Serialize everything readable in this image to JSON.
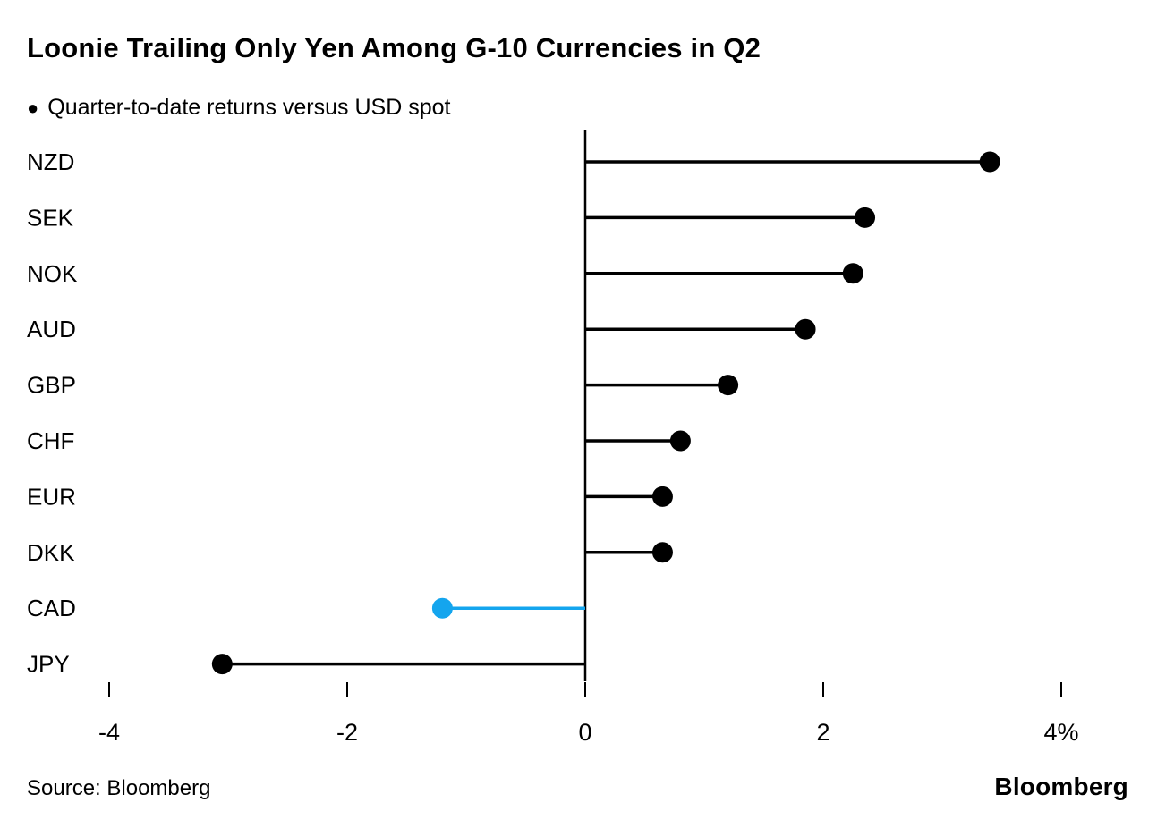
{
  "title": "Loonie Trailing Only Yen Among G-10 Currencies in Q2",
  "legend": {
    "marker": "●",
    "label": "Quarter-to-date returns versus USD spot"
  },
  "footer": {
    "source": "Source: Bloomberg",
    "brand": "Bloomberg"
  },
  "colors": {
    "default_series": "#000000",
    "highlight_series": "#14a5ee",
    "axis": "#000000",
    "background": "#ffffff"
  },
  "chart_data": {
    "type": "bar",
    "subtype": "horizontal-lollipop",
    "title": "Loonie Trailing Only Yen Among G-10 Currencies in Q2",
    "series_name": "Quarter-to-date returns versus USD spot",
    "categories": [
      "NZD",
      "SEK",
      "NOK",
      "AUD",
      "GBP",
      "CHF",
      "EUR",
      "DKK",
      "CAD",
      "JPY"
    ],
    "values": [
      3.4,
      2.35,
      2.25,
      1.85,
      1.2,
      0.8,
      0.65,
      0.65,
      -1.2,
      -3.05
    ],
    "highlight_category": "CAD",
    "unit": "%",
    "xlabel": "",
    "ylabel": "",
    "xlim": [
      -4.7,
      4.7
    ],
    "x_ticks": [
      -4,
      -2,
      0,
      2,
      4
    ],
    "x_tick_labels": [
      "-4",
      "-2",
      "0",
      "2",
      "4%"
    ],
    "grid": "off",
    "legend_position": "top-left",
    "zero_baseline": true
  }
}
